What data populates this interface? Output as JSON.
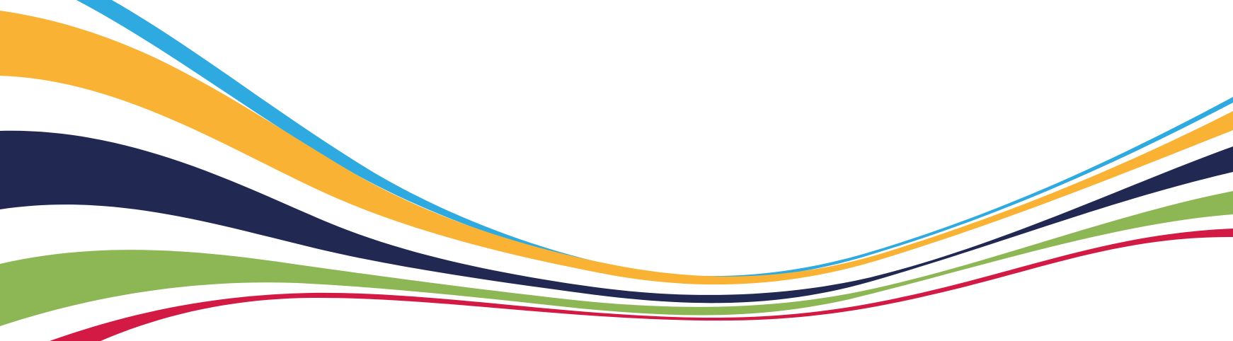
{
  "graphic": {
    "background_color": "#ffffff",
    "bands": [
      {
        "name": "blue",
        "color": "#2eaae1"
      },
      {
        "name": "orange",
        "color": "#f9b233"
      },
      {
        "name": "navy",
        "color": "#212852"
      },
      {
        "name": "green",
        "color": "#8db654"
      },
      {
        "name": "red",
        "color": "#d31a44"
      }
    ]
  }
}
